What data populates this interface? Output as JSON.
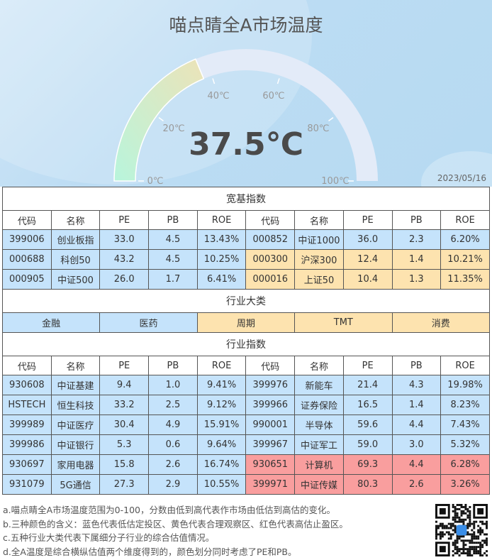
{
  "header": {
    "title": "喵点睛全A市场温度",
    "temperature": "37.5℃",
    "temperature_value": 37.5,
    "date": "2023/05/16",
    "gauge_min": 0,
    "gauge_max": 100,
    "ticks": [
      "0℃",
      "20℃",
      "40℃",
      "60℃",
      "80℃",
      "100℃"
    ]
  },
  "colors": {
    "blue": "#c5e3fb",
    "yellow": "#fde3af",
    "red": "#f99e9e"
  },
  "broad": {
    "title": "宽基指数",
    "columns": [
      "代码",
      "名称",
      "PE",
      "PB",
      "ROE",
      "代码",
      "名称",
      "PE",
      "PB",
      "ROE"
    ],
    "rows": [
      {
        "left": [
          "399006",
          "创业板指",
          "33.0",
          "4.5",
          "13.43%"
        ],
        "left_color": "blue",
        "right": [
          "000852",
          "中证1000",
          "36.0",
          "2.3",
          "6.20%"
        ],
        "right_color": "blue"
      },
      {
        "left": [
          "000688",
          "科创50",
          "43.2",
          "4.5",
          "10.25%"
        ],
        "left_color": "blue",
        "right": [
          "000300",
          "沪深300",
          "12.4",
          "1.4",
          "10.21%"
        ],
        "right_color": "yellow"
      },
      {
        "left": [
          "000905",
          "中证500",
          "26.0",
          "1.7",
          "6.41%"
        ],
        "left_color": "blue",
        "right": [
          "000016",
          "上证50",
          "10.4",
          "1.3",
          "11.35%"
        ],
        "right_color": "yellow"
      }
    ]
  },
  "sectors": {
    "title": "行业大类",
    "items": [
      {
        "label": "金融",
        "color": "blue"
      },
      {
        "label": "医药",
        "color": "blue"
      },
      {
        "label": "周期",
        "color": "yellow"
      },
      {
        "label": "TMT",
        "color": "yellow"
      },
      {
        "label": "消费",
        "color": "yellow"
      }
    ]
  },
  "industry": {
    "title": "行业指数",
    "columns": [
      "代码",
      "名称",
      "PE",
      "PB",
      "ROE",
      "代码",
      "名称",
      "PE",
      "PB",
      "ROE"
    ],
    "rows": [
      {
        "left": [
          "930608",
          "中证基建",
          "9.4",
          "1.0",
          "9.41%"
        ],
        "left_color": "blue",
        "right": [
          "399976",
          "新能车",
          "21.4",
          "4.3",
          "19.98%"
        ],
        "right_color": "blue"
      },
      {
        "left": [
          "HSTECH",
          "恒生科技",
          "33.2",
          "2.5",
          "9.12%"
        ],
        "left_color": "blue",
        "right": [
          "399966",
          "证券保险",
          "16.5",
          "1.4",
          "8.23%"
        ],
        "right_color": "blue"
      },
      {
        "left": [
          "399989",
          "中证医疗",
          "30.4",
          "4.9",
          "15.91%"
        ],
        "left_color": "blue",
        "right": [
          "990001",
          "半导体",
          "59.6",
          "4.4",
          "7.43%"
        ],
        "right_color": "blue"
      },
      {
        "left": [
          "399986",
          "中证银行",
          "5.3",
          "0.6",
          "9.64%"
        ],
        "left_color": "blue",
        "right": [
          "399967",
          "中证军工",
          "59.0",
          "3.0",
          "5.32%"
        ],
        "right_color": "blue"
      },
      {
        "left": [
          "930697",
          "家用电器",
          "15.8",
          "2.6",
          "16.74%"
        ],
        "left_color": "blue",
        "right": [
          "930651",
          "计算机",
          "69.3",
          "4.4",
          "6.28%"
        ],
        "right_color": "red"
      },
      {
        "left": [
          "931079",
          "5G通信",
          "27.3",
          "2.9",
          "10.55%"
        ],
        "left_color": "blue",
        "right": [
          "399971",
          "中证传媒",
          "80.3",
          "2.6",
          "3.26%"
        ],
        "right_color": "red"
      }
    ]
  },
  "notes": [
    "a.喵点睛全A市场温度范围为0-100，分数由低到高代表作市场由低估到高估的变化。",
    "b.三种颜色的含义：蓝色代表低估定投区、黄色代表合理观察区、红色代表高估止盈区。",
    "c.五种行业大类代表下属细分子行业的综合估值情况。",
    "d.全A温度是综合横纵估值两个维度得到的，颜色划分同时考虑了PE和PB。"
  ],
  "qr_icon": "qr-code-icon"
}
